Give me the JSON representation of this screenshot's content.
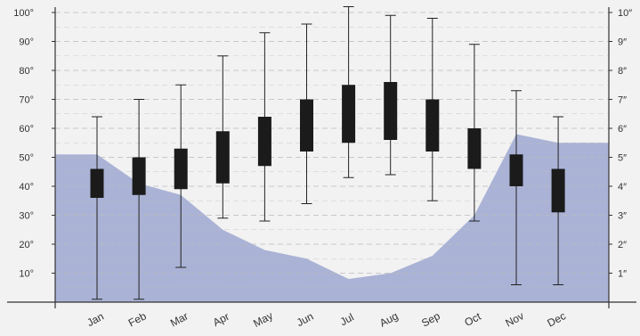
{
  "chart_data": {
    "type": "box",
    "title": "",
    "xlabel": "",
    "ylabel": "",
    "categories": [
      "Jan",
      "Feb",
      "Mar",
      "Apr",
      "May",
      "Jun",
      "Jul",
      "Aug",
      "Sep",
      "Oct",
      "Nov",
      "Dec"
    ],
    "left_axis": {
      "ylim": [
        0,
        105
      ],
      "ticks": [
        10,
        20,
        30,
        40,
        50,
        60,
        70,
        80,
        90,
        100
      ],
      "tick_labels": [
        "10°",
        "20°",
        "30°",
        "40°",
        "50°",
        "60°",
        "70°",
        "80°",
        "90°",
        "100°"
      ]
    },
    "right_axis": {
      "ylim": [
        0,
        10.5
      ],
      "ticks": [
        1,
        2,
        3,
        4,
        5,
        6,
        7,
        8,
        9,
        10
      ],
      "tick_labels": [
        "1″",
        "2″",
        "3″",
        "4″",
        "5″",
        "6″",
        "7″",
        "8″",
        "9″",
        "10″"
      ]
    },
    "temperature_boxes": [
      {
        "month": "Jan",
        "min": 1,
        "q1": 36,
        "q3": 46,
        "max": 64
      },
      {
        "month": "Feb",
        "min": 1,
        "q1": 37,
        "q3": 50,
        "max": 70
      },
      {
        "month": "Mar",
        "min": 12,
        "q1": 39,
        "q3": 53,
        "max": 75
      },
      {
        "month": "Apr",
        "min": 29,
        "q1": 41,
        "q3": 59,
        "max": 85
      },
      {
        "month": "May",
        "min": 28,
        "q1": 47,
        "q3": 64,
        "max": 93
      },
      {
        "month": "Jun",
        "min": 34,
        "q1": 52,
        "q3": 70,
        "max": 96
      },
      {
        "month": "Jul",
        "min": 43,
        "q1": 55,
        "q3": 75,
        "max": 102
      },
      {
        "month": "Aug",
        "min": 44,
        "q1": 56,
        "q3": 76,
        "max": 99
      },
      {
        "month": "Sep",
        "min": 35,
        "q1": 52,
        "q3": 70,
        "max": 98
      },
      {
        "month": "Oct",
        "min": 28,
        "q1": 46,
        "q3": 60,
        "max": 89
      },
      {
        "month": "Nov",
        "min": 6,
        "q1": 40,
        "q3": 51,
        "max": 73
      },
      {
        "month": "Dec",
        "min": 6,
        "q1": 31,
        "q3": 46,
        "max": 64
      }
    ],
    "precipitation_area": {
      "x": [
        "start",
        "Jan",
        "Feb",
        "Mar",
        "Apr",
        "May",
        "Jun",
        "Jul",
        "Aug",
        "Sep",
        "Oct",
        "Nov",
        "Dec",
        "end"
      ],
      "values": [
        5.1,
        5.1,
        4.1,
        3.7,
        2.5,
        1.8,
        1.5,
        0.8,
        1.0,
        1.6,
        3.0,
        5.8,
        5.5,
        5.5
      ]
    },
    "colors": {
      "area_fill": "#aab3d6",
      "box_fill": "#1b1b1b",
      "whisker": "#222222",
      "gridline": "#bbbbbb",
      "background": "#f2f2f2"
    },
    "grid": true
  }
}
